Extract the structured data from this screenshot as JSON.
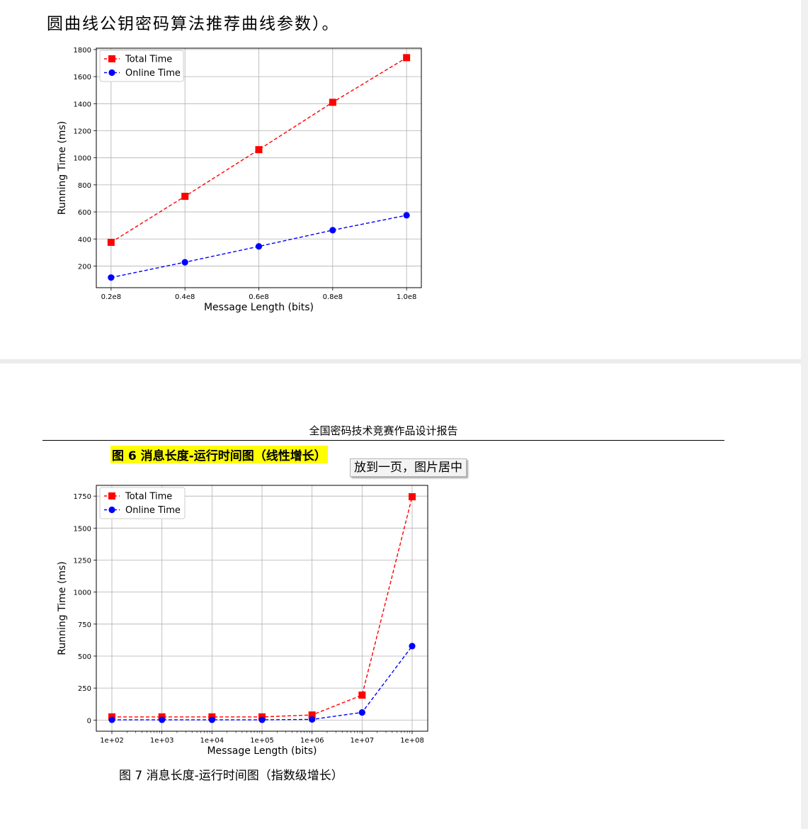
{
  "page1": {
    "text_line": "圆曲线公钥密码算法推荐曲线参数）。"
  },
  "page2": {
    "header": "全国密码技术竞赛作品设计报告",
    "caption_fig6": "图 6 消息长度-运行时间图（线性增长）",
    "tooltip": "放到一页，图片居中",
    "caption_fig7": "图 7 消息长度-运行时间图（指数级增长）"
  },
  "colors": {
    "total": "#ff0000",
    "online": "#0000ff",
    "highlight": "#ffff00",
    "grid": "#b0b0b0"
  },
  "chart_data": [
    {
      "type": "line",
      "xlabel": "Message Length (bits)",
      "ylabel": "Running Time (ms)",
      "x": [
        0.2,
        0.4,
        0.6,
        0.8,
        1.0
      ],
      "x_tick_labels": [
        "0.2e8",
        "0.4e8",
        "0.6e8",
        "0.8e8",
        "1.0e8"
      ],
      "xlim": [
        0.16,
        1.04
      ],
      "ylim": [
        40,
        1810
      ],
      "y_ticks": [
        200,
        400,
        600,
        800,
        1000,
        1200,
        1400,
        1600,
        1800
      ],
      "grid": true,
      "legend": "top-left",
      "series": [
        {
          "name": "Total Time",
          "marker": "square",
          "values": [
            375,
            715,
            1060,
            1410,
            1740
          ]
        },
        {
          "name": "Online Time",
          "marker": "circle",
          "values": [
            115,
            228,
            345,
            465,
            575
          ]
        }
      ]
    },
    {
      "type": "line",
      "xscale": "log",
      "xlabel": "Message Length (bits)",
      "ylabel": "Running Time (ms)",
      "x": [
        100,
        1000,
        10000,
        100000,
        1000000,
        10000000,
        100000000
      ],
      "x_tick_labels": [
        "1e+02",
        "1e+03",
        "1e+04",
        "1e+05",
        "1e+06",
        "1e+07",
        "1e+08"
      ],
      "xlim": [
        100,
        100000000
      ],
      "ylim": [
        -87,
        1834
      ],
      "y_ticks": [
        0,
        250,
        500,
        750,
        1000,
        1250,
        1500,
        1750
      ],
      "grid": true,
      "legend": "top-left",
      "series": [
        {
          "name": "Total Time",
          "marker": "square",
          "values": [
            25,
            25,
            25,
            25,
            40,
            195,
            1745
          ]
        },
        {
          "name": "Online Time",
          "marker": "circle",
          "values": [
            2,
            2,
            2,
            2,
            5,
            60,
            578
          ]
        }
      ]
    }
  ]
}
